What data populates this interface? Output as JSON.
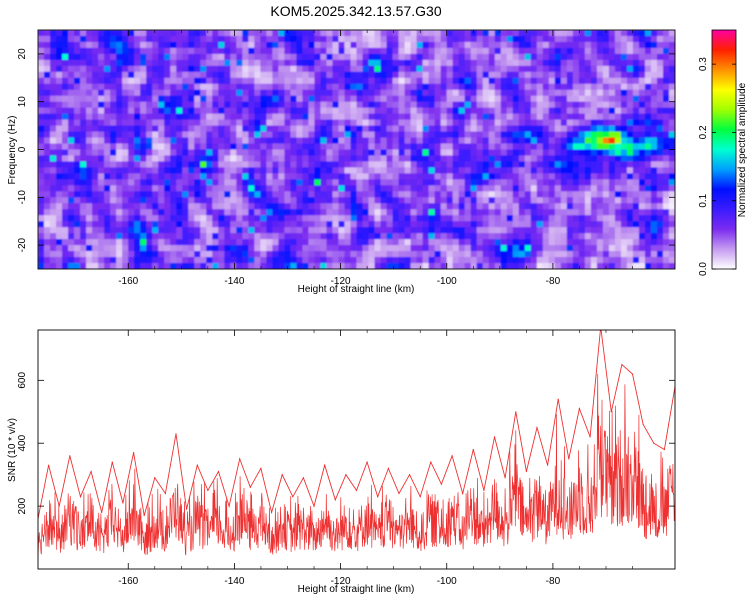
{
  "title": "KOM5.2025.342.13.57.G30",
  "colorbar": {
    "label": "Normalized spectral amplitude",
    "range": [
      0.0,
      0.35
    ],
    "ticks": [
      "0.0",
      "0.1",
      "0.2",
      "0.3"
    ],
    "colors": [
      "#ffffff",
      "#c59bf0",
      "#7b2cf0",
      "#3b1bff",
      "#0010ff",
      "#00a0ff",
      "#00ffd0",
      "#00ff40",
      "#a0ff00",
      "#ffff00",
      "#ff9000",
      "#ff2000",
      "#ff00a0"
    ]
  },
  "chart_data": [
    {
      "type": "heatmap",
      "xlabel": "Height of straight line (km)",
      "ylabel": "Frequency (Hz)",
      "xlim": [
        -177,
        -57
      ],
      "ylim": [
        -25,
        25
      ],
      "xticks": [
        "-160",
        "-140",
        "-120",
        "-100",
        "-80"
      ],
      "yticks": [
        "-20",
        "-10",
        "0",
        "10",
        "20"
      ],
      "colormap": [
        "#ffffff",
        "#c59bf0",
        "#7b2cf0",
        "#3b1bff",
        "#0010ff",
        "#00a0ff",
        "#00ffd0",
        "#00ff40",
        "#a0ff00",
        "#ffff00",
        "#ff9000",
        "#ff2000",
        "#ff00a0"
      ],
      "value_range": [
        0.0,
        0.35
      ],
      "background_level": 0.06,
      "hotspots": [
        {
          "x": -70,
          "y": 2,
          "value": 0.33
        },
        {
          "x": -66,
          "y": 0,
          "value": 0.22
        },
        {
          "x": -74,
          "y": 1,
          "value": 0.2
        },
        {
          "x": -62,
          "y": 1,
          "value": 0.2
        },
        {
          "x": -78,
          "y": -3,
          "value": 0.15
        },
        {
          "x": -85,
          "y": 3,
          "value": 0.15
        }
      ]
    },
    {
      "type": "line",
      "xlabel": "Height of straight line (km)",
      "ylabel": "SNR (10 * v/v)",
      "xlim": [
        -177,
        -57
      ],
      "ylim": [
        0,
        760
      ],
      "xticks": [
        "-160",
        "-140",
        "-120",
        "-100",
        "-80"
      ],
      "yticks": [
        "200",
        "400",
        "600"
      ],
      "color": "#ee3030",
      "series": [
        {
          "x": [
            -177,
            -175,
            -173,
            -171,
            -169,
            -167,
            -165,
            -163,
            -161,
            -159,
            -157,
            -155,
            -153,
            -151,
            -149,
            -147,
            -145,
            -143,
            -141,
            -139,
            -137,
            -135,
            -133,
            -131,
            -129,
            -127,
            -125,
            -123,
            -121,
            -119,
            -117,
            -115,
            -113,
            -111,
            -109,
            -107,
            -105,
            -103,
            -101,
            -99,
            -97,
            -95,
            -93,
            -91,
            -89,
            -87,
            -85,
            -83,
            -81,
            -79,
            -77,
            -75,
            -73,
            -71,
            -69,
            -67,
            -65,
            -63,
            -61,
            -59,
            -57
          ],
          "y": [
            160,
            330,
            200,
            360,
            230,
            310,
            180,
            340,
            210,
            370,
            170,
            290,
            240,
            430,
            190,
            330,
            250,
            310,
            200,
            350,
            260,
            320,
            180,
            300,
            230,
            290,
            200,
            330,
            220,
            300,
            250,
            340,
            230,
            320,
            240,
            300,
            230,
            340,
            270,
            360,
            240,
            380,
            250,
            420,
            290,
            500,
            310,
            450,
            330,
            540,
            350,
            510,
            420,
            770,
            500,
            650,
            620,
            460,
            400,
            380,
            580
          ]
        }
      ]
    }
  ]
}
